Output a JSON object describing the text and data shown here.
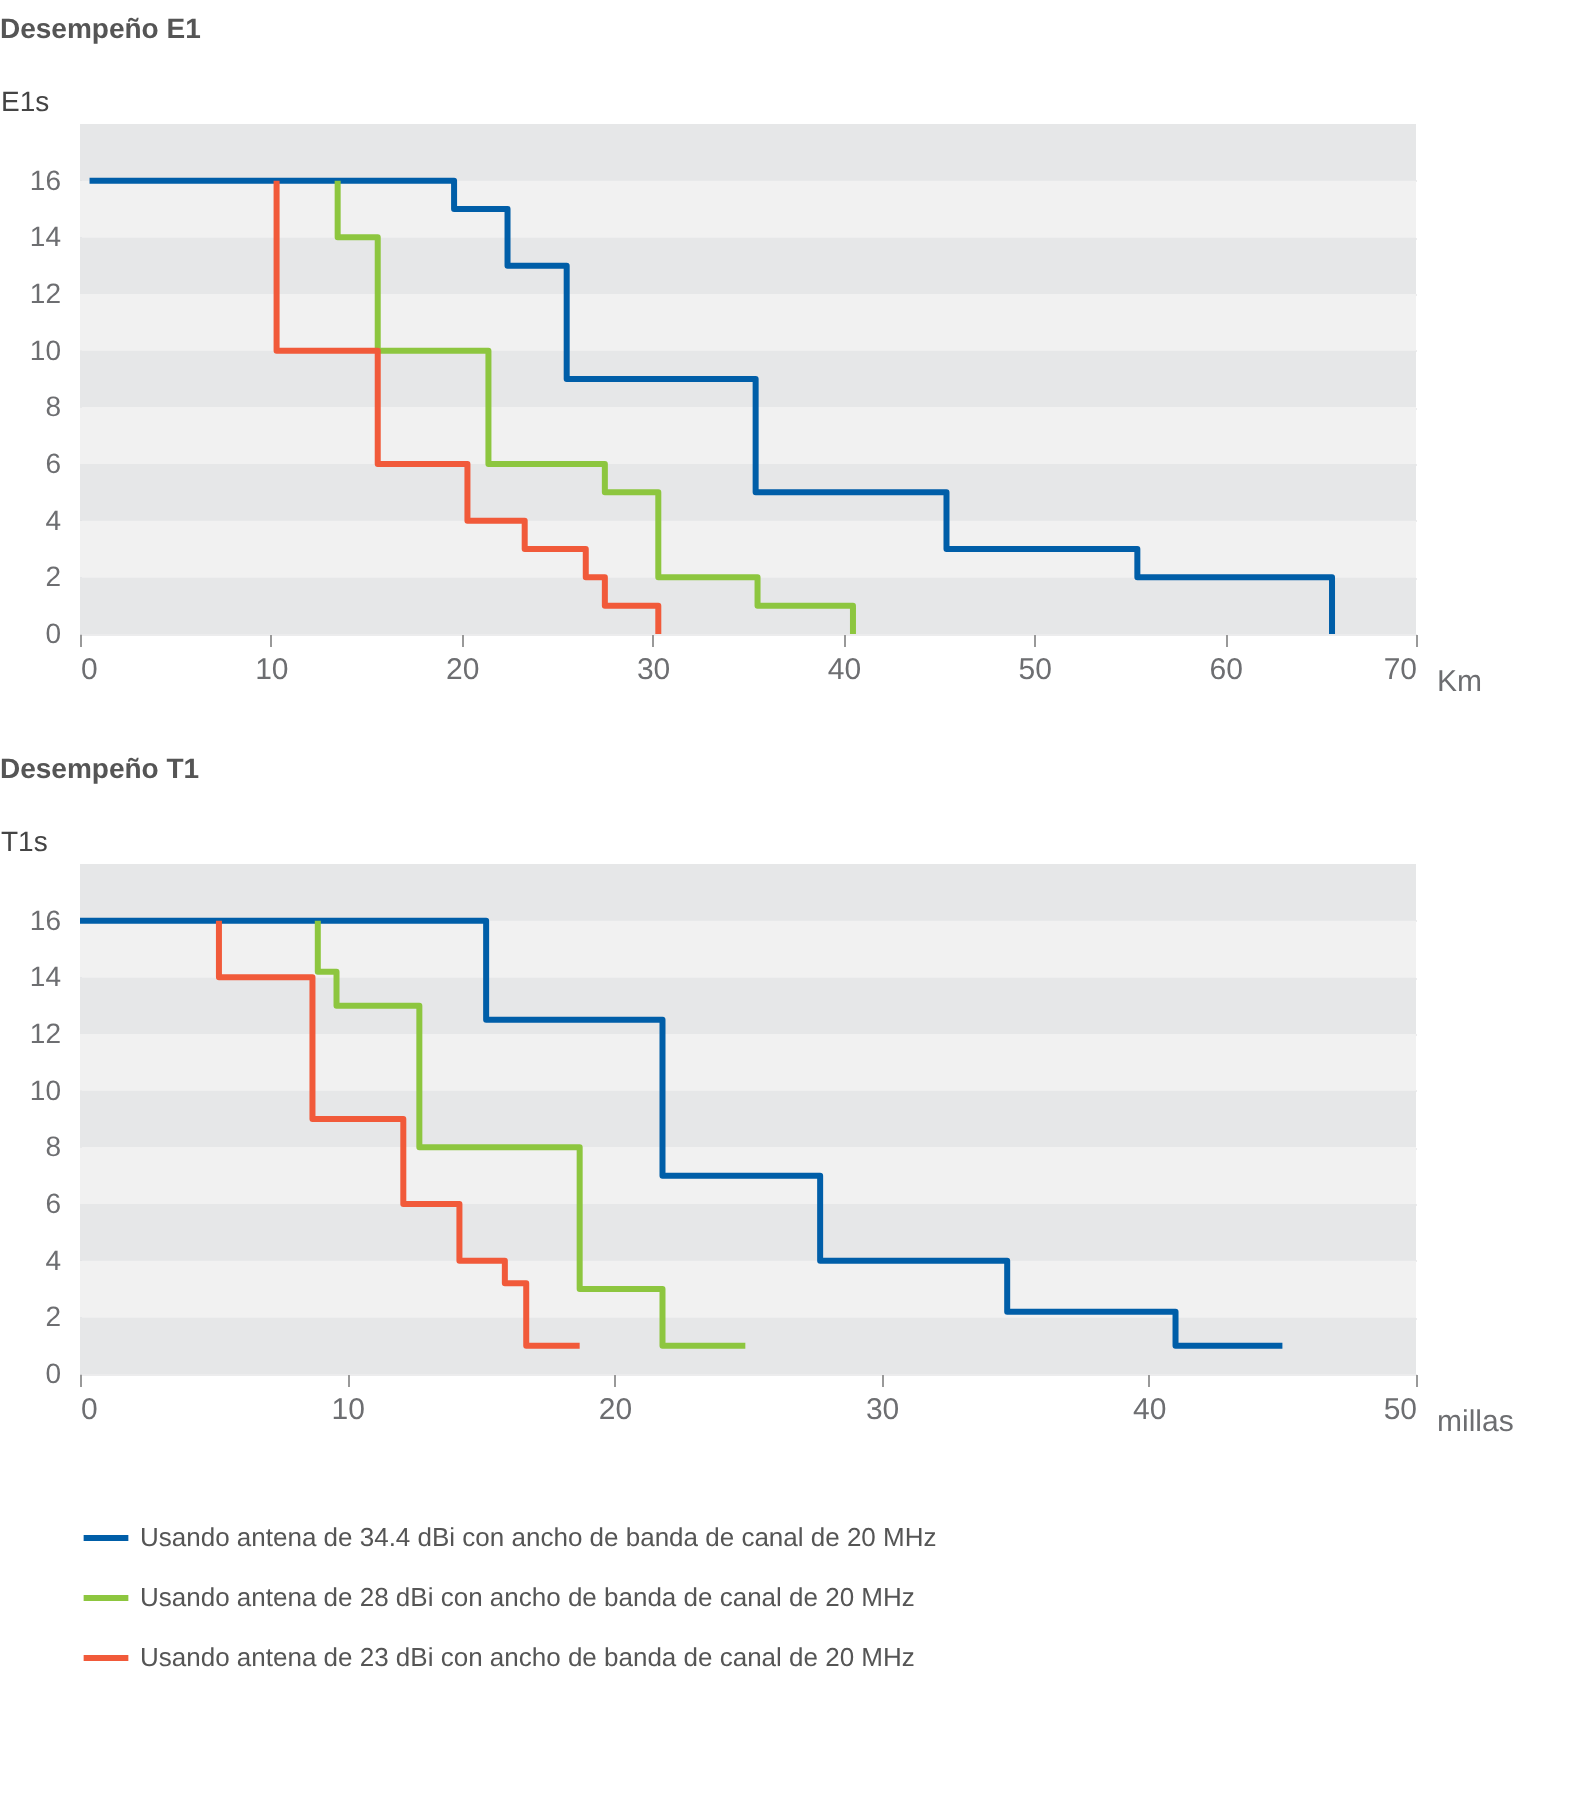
{
  "chart_data": [
    {
      "type": "step",
      "title": "Desempeño E1",
      "xlabel": "Km",
      "ylabel": "E1s",
      "xlim": [
        0,
        70
      ],
      "xticks": [
        0,
        10,
        20,
        30,
        40,
        50,
        60,
        70
      ],
      "ylim": [
        0,
        18
      ],
      "yticks": [
        0,
        2,
        4,
        6,
        8,
        10,
        12,
        14,
        16
      ],
      "grid": "y",
      "legend": false,
      "line_style": "solid",
      "marker": "none",
      "series": [
        {
          "color": "#005ea8",
          "x": [
            0.5,
            19.6,
            22.4,
            25.5,
            35.4,
            45.4,
            55.4,
            65.6
          ],
          "values": [
            16,
            15,
            13,
            9,
            5,
            3,
            2,
            0
          ]
        },
        {
          "color": "#8dc63f",
          "x": [
            13.5,
            13.5,
            15.6,
            21.4,
            27.5,
            30.3,
            35.5,
            40.5
          ],
          "values": [
            16,
            14,
            10,
            6,
            5,
            2,
            1,
            0
          ]
        },
        {
          "color": "#f15a3a",
          "x": [
            10.3,
            10.3,
            15.6,
            20.3,
            23.3,
            26.5,
            27.5,
            30.3
          ],
          "values": [
            16,
            10,
            6,
            4,
            3,
            2,
            1,
            0
          ]
        }
      ]
    },
    {
      "type": "step",
      "title": "Desempeño T1",
      "xlabel": "millas",
      "ylabel": "T1s",
      "xlim": [
        0,
        50
      ],
      "xticks": [
        0,
        10,
        20,
        30,
        40,
        50
      ],
      "ylim": [
        0,
        18
      ],
      "yticks": [
        0,
        2,
        4,
        6,
        8,
        10,
        12,
        14,
        16
      ],
      "grid": "y",
      "legend": "bottom",
      "line_style": "solid",
      "marker": "none",
      "series": [
        {
          "name": "Usando antena de 34.4 dBi con ancho de banda de canal de 20 MHz",
          "color": "#005ea8",
          "x": [
            0,
            15.2,
            21.8,
            27.7,
            34.7,
            41,
            45
          ],
          "values": [
            16,
            12.5,
            7,
            4,
            2.2,
            1,
            1
          ]
        },
        {
          "name": "Usando antena de 28 dBi con ancho de banda de canal de 20 MHz",
          "color": "#8dc63f",
          "x": [
            8.9,
            8.9,
            9.6,
            12.7,
            18.7,
            21.8,
            24.9
          ],
          "values": [
            16,
            14.2,
            13,
            8,
            3,
            1,
            1
          ]
        },
        {
          "name": "Usando antena de 23 dBi con ancho de banda de canal de 20 MHz",
          "color": "#f15a3a",
          "x": [
            5.2,
            5.2,
            8.7,
            12.1,
            14.2,
            15.9,
            16.7,
            18.7
          ],
          "values": [
            16,
            14,
            9,
            6,
            4,
            3.2,
            1,
            1
          ]
        }
      ]
    }
  ]
}
